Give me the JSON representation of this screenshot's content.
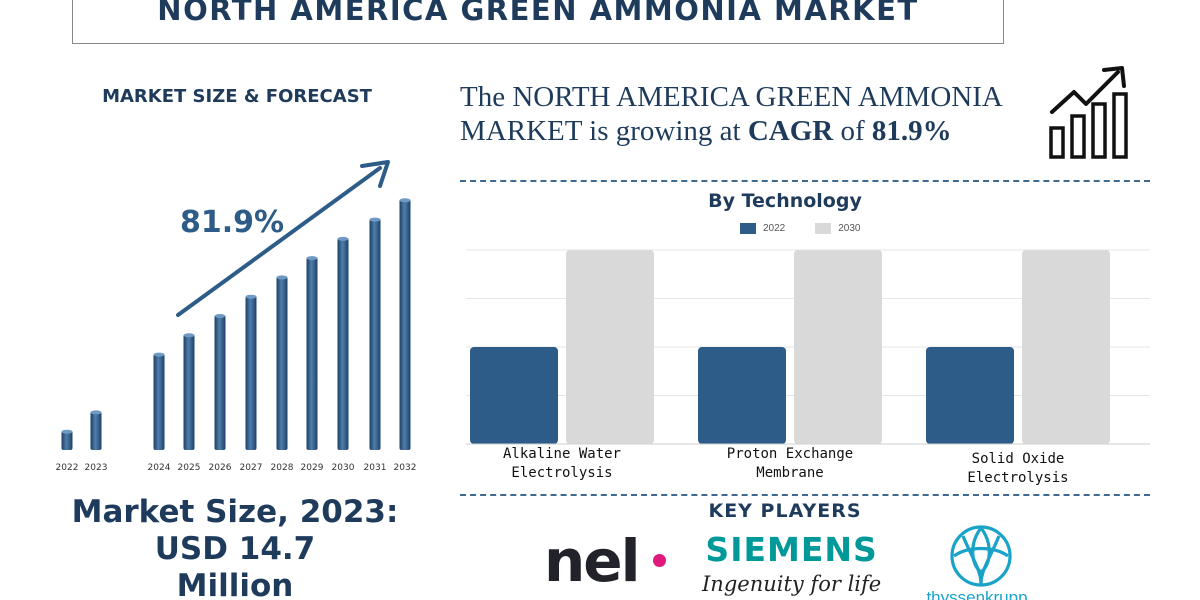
{
  "title": "NORTH AMERICA GREEN AMMONIA MARKET",
  "left_panel": {
    "subtitle": "MARKET SIZE & FORECAST",
    "market_size_line1": "Market Size, 2023:",
    "market_size_line2": "USD 14.7",
    "market_size_line3": "Million"
  },
  "headline": {
    "part1": "The NORTH AMERICA GREEN AMMONIA MARKET is growing at ",
    "cagr_label": "CAGR",
    "part2": " of ",
    "cagr_value": "81.9%"
  },
  "key_players": {
    "title": "KEY PLAYERS",
    "nel": "nel",
    "siemens_name": "SIEMENS",
    "siemens_tagline": "Ingenuity for life",
    "thyssenkrupp": "thyssenkrupp"
  },
  "colors": {
    "navy": "#1f3b5c",
    "bar_blue": "#2d5c88",
    "bar_gray": "#d9d9d9",
    "siemens_teal": "#009999",
    "nel_pink": "#e0197d",
    "tk_blue": "#1aa3c9"
  },
  "chart_data": [
    {
      "type": "bar",
      "title": "MARKET SIZE & FORECAST",
      "categories": [
        "2022",
        "2023",
        "2024",
        "2025",
        "2026",
        "2027",
        "2028",
        "2029",
        "2030",
        "2031",
        "2032"
      ],
      "values": [
        1.0,
        2.0,
        5.0,
        6.0,
        7.0,
        8.0,
        9.0,
        10.0,
        11.0,
        12.0,
        13.0
      ],
      "annotation": "81.9%",
      "ylim": [
        0,
        14
      ]
    },
    {
      "type": "bar",
      "title": "By Technology",
      "categories": [
        "Alkaline Water Electrolysis",
        "Proton Exchange Membrane",
        "Solid Oxide Electrolysis"
      ],
      "category_lines": [
        [
          "Alkaline Water",
          "Electrolysis"
        ],
        [
          "Proton Exchange",
          "Membrane"
        ],
        [
          "Solid Oxide",
          "Electrolysis"
        ]
      ],
      "series": [
        {
          "name": "2022",
          "values": [
            1.0,
            1.0,
            1.0
          ]
        },
        {
          "name": "2030",
          "values": [
            2.0,
            2.0,
            2.0
          ]
        }
      ],
      "ylim": [
        0,
        2
      ]
    }
  ]
}
